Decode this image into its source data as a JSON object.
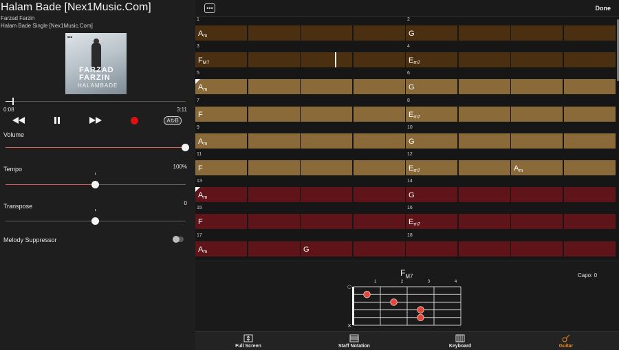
{
  "player": {
    "title": "Halam Bade [Nex1Music.Com]",
    "artist": "Farzad Farzin",
    "album": "Halam Bade Single [Nex1Music.Com]",
    "cover_text": {
      "line1": "FARZAD",
      "line2": "FARZIN",
      "line3": "HALAMBADE"
    },
    "time_current": "0:08",
    "time_total": "3:11",
    "progress_fraction": 0.042,
    "controls": {
      "rewind": "rewind-icon",
      "pause": "pause-icon",
      "forward": "fast-forward-icon",
      "record": "record-icon",
      "ab_loop": "A↻B"
    },
    "volume": {
      "label": "Volume",
      "level": 1.0
    },
    "tempo": {
      "label": "Tempo",
      "value": "100%",
      "level": 0.5
    },
    "transpose": {
      "label": "Transpose",
      "value": "0",
      "level": 0.5
    },
    "melody_suppressor": {
      "label": "Melody Suppressor",
      "on": false
    }
  },
  "toolbar": {
    "menu_icon": "more-icon",
    "done_label": "Done"
  },
  "colors": {
    "section_a": "#4a3010",
    "section_b": "#8a6a38",
    "section_c": "#5e1418",
    "accent": "#f08a1c",
    "dot": "#e5463a"
  },
  "chords": {
    "bars": [
      {
        "n": "1",
        "section": "a",
        "chord": "A",
        "q": "m"
      },
      {
        "n": "2",
        "section": "a",
        "chord": "G",
        "q": ""
      },
      {
        "n": "3",
        "section": "a",
        "chord": "F",
        "q": "M7"
      },
      {
        "n": "4",
        "section": "a",
        "chord": "E",
        "q": "m7"
      },
      {
        "n": "5",
        "section": "b",
        "chord": "A",
        "q": "m",
        "mark": true
      },
      {
        "n": "6",
        "section": "b",
        "chord": "G",
        "q": ""
      },
      {
        "n": "7",
        "section": "b",
        "chord": "F",
        "q": ""
      },
      {
        "n": "8",
        "section": "b",
        "chord": "E",
        "q": "m7"
      },
      {
        "n": "9",
        "section": "b",
        "chord": "A",
        "q": "m"
      },
      {
        "n": "10",
        "section": "b",
        "chord": "G",
        "q": ""
      },
      {
        "n": "11",
        "section": "b",
        "chord": "F",
        "q": ""
      },
      {
        "n": "12",
        "section": "b",
        "chord": "E",
        "q": "m7",
        "extra": {
          "chord": "A",
          "q": "m",
          "beat": 3
        }
      },
      {
        "n": "13",
        "section": "c",
        "chord": "A",
        "q": "m",
        "mark": true
      },
      {
        "n": "14",
        "section": "c",
        "chord": "G",
        "q": ""
      },
      {
        "n": "15",
        "section": "c",
        "chord": "F",
        "q": ""
      },
      {
        "n": "16",
        "section": "c",
        "chord": "E",
        "q": "m7"
      },
      {
        "n": "17",
        "section": "c",
        "chord": "A",
        "q": "m",
        "extra": {
          "chord": "G",
          "q": "",
          "beat": 3
        }
      },
      {
        "n": "18",
        "section": "c",
        "chord": "",
        "q": ""
      }
    ],
    "cursor": {
      "bar": 3,
      "beat_fraction": 0.95
    }
  },
  "chord_diagram": {
    "name": "F",
    "quality": "M7",
    "capo_label": "Capo: 0",
    "fret_labels": [
      "1",
      "2",
      "3",
      "4"
    ],
    "open_string_mark": "○",
    "muted_string_mark": "×",
    "dots": [
      {
        "string": 1,
        "fret": 1
      },
      {
        "string": 2,
        "fret": 2
      },
      {
        "string": 3,
        "fret": 3
      },
      {
        "string": 4,
        "fret": 3
      }
    ]
  },
  "tabs": [
    {
      "label": "Full Screen",
      "icon": "full-screen-icon",
      "active": false
    },
    {
      "label": "Staff Notation",
      "icon": "staff-notation-icon",
      "active": false
    },
    {
      "label": "Keyboard",
      "icon": "keyboard-icon",
      "active": false
    },
    {
      "label": "Guitar",
      "icon": "guitar-icon",
      "active": true
    }
  ]
}
